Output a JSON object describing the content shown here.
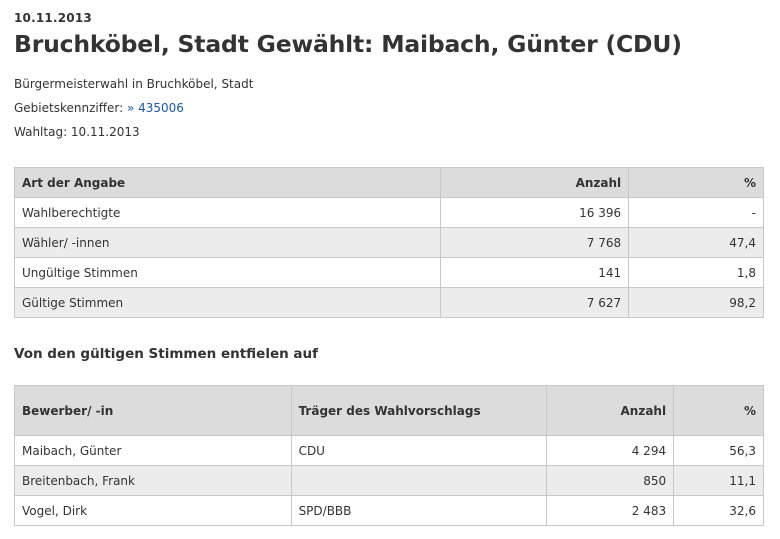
{
  "header": {
    "date": "10.11.2013",
    "title": "Bruchköbel, Stadt Gewählt: Maibach, Günter (CDU)"
  },
  "info": {
    "election": "Bürgermeisterwahl in Bruchköbel, Stadt",
    "area_code_label": "Gebietskennziffer:",
    "area_code_link": "» 435006",
    "election_day": "Wahltag: 10.11.2013"
  },
  "summary_table": {
    "headers": [
      "Art der Angabe",
      "Anzahl",
      "%"
    ],
    "rows": [
      [
        "Wahlberechtigte",
        "16 396",
        "-"
      ],
      [
        "Wähler/ -innen",
        "7 768",
        "47,4"
      ],
      [
        "Ungültige Stimmen",
        "141",
        "1,8"
      ],
      [
        "Gültige Stimmen",
        "7 627",
        "98,2"
      ]
    ]
  },
  "section_heading": "Von den gültigen Stimmen entfielen auf",
  "candidates_table": {
    "headers": [
      "Bewerber/ -in",
      "Träger des Wahlvorschlags",
      "Anzahl",
      "%"
    ],
    "rows": [
      [
        "Maibach, Günter",
        "CDU",
        "4 294",
        "56,3"
      ],
      [
        "Breitenbach, Frank",
        "",
        "850",
        "11,1"
      ],
      [
        "Vogel, Dirk",
        "SPD/BBB",
        "2 483",
        "32,6"
      ]
    ]
  }
}
